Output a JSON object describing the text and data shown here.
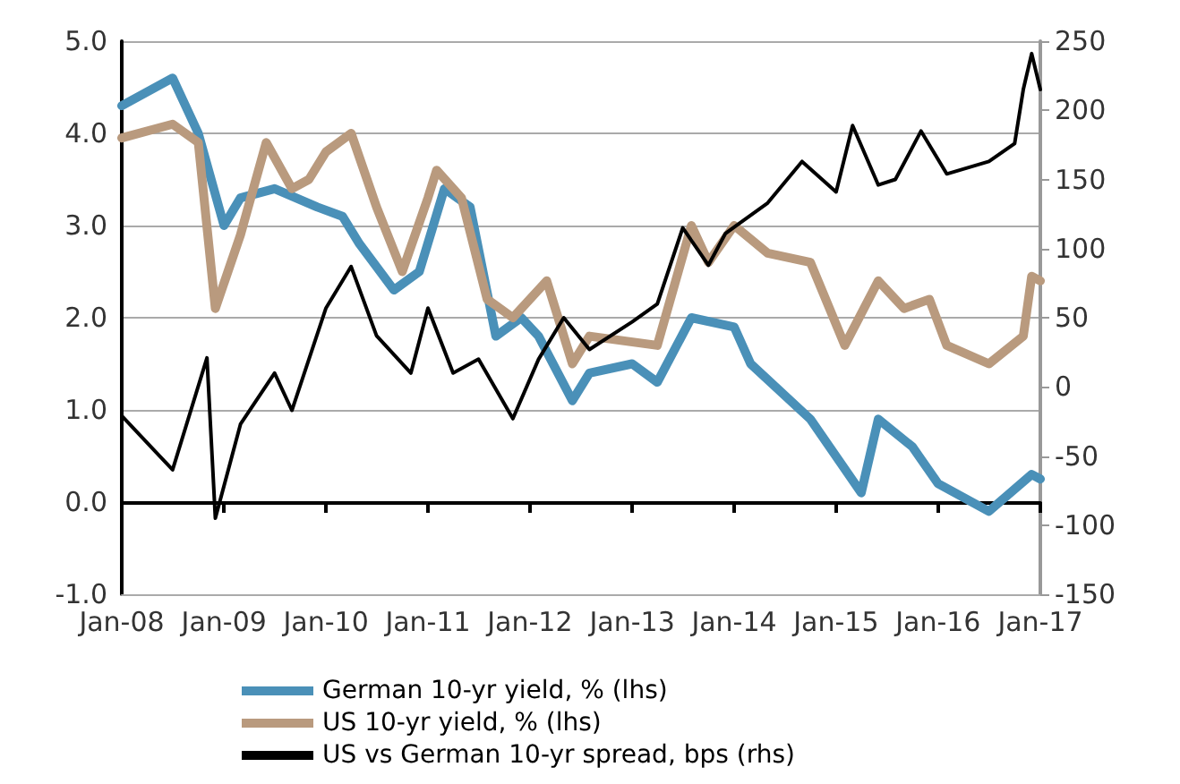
{
  "chart_data": {
    "type": "line",
    "legend": "bottom",
    "grid": "y",
    "marker": "none",
    "line_style": "solid",
    "xlim": [
      "2008-01",
      "2017-01"
    ],
    "xticks": [
      {
        "value": "2008-01",
        "label": "Jan-08"
      },
      {
        "value": "2009-01",
        "label": "Jan-09"
      },
      {
        "value": "2010-01",
        "label": "Jan-10"
      },
      {
        "value": "2011-01",
        "label": "Jan-11"
      },
      {
        "value": "2012-01",
        "label": "Jan-12"
      },
      {
        "value": "2013-01",
        "label": "Jan-13"
      },
      {
        "value": "2014-01",
        "label": "Jan-14"
      },
      {
        "value": "2015-01",
        "label": "Jan-15"
      },
      {
        "value": "2016-01",
        "label": "Jan-16"
      },
      {
        "value": "2017-01",
        "label": "Jan-17"
      }
    ],
    "ylim": [
      -1,
      5
    ],
    "yticks": [
      {
        "value": -1,
        "label": "-1.0"
      },
      {
        "value": 0,
        "label": "0.0"
      },
      {
        "value": 1,
        "label": "1.0"
      },
      {
        "value": 2,
        "label": "2.0"
      },
      {
        "value": 3,
        "label": "3.0"
      },
      {
        "value": 4,
        "label": "4.0"
      },
      {
        "value": 5,
        "label": "5.0"
      }
    ],
    "y2lim": [
      -150,
      250
    ],
    "y2ticks": [
      -150,
      -100,
      -50,
      0,
      50,
      100,
      150,
      200,
      250
    ],
    "series": [
      {
        "name": "German 10-yr yield, % (lhs)",
        "color": "#4a90b8",
        "x": [
          "2008-01",
          "2008-07",
          "2008-10",
          "2009-01",
          "2009-03",
          "2009-07",
          "2009-12",
          "2010-03",
          "2010-05",
          "2010-09",
          "2010-12",
          "2011-03",
          "2011-06",
          "2011-09",
          "2011-12",
          "2012-02",
          "2012-06",
          "2012-08",
          "2013-01",
          "2013-04",
          "2013-08",
          "2014-01",
          "2014-03",
          "2014-10",
          "2015-04",
          "2015-06",
          "2015-10",
          "2016-01",
          "2016-07",
          "2016-12",
          "2017-01"
        ],
        "values": [
          4.3,
          4.6,
          4.0,
          3.0,
          3.3,
          3.4,
          3.2,
          3.1,
          2.8,
          2.3,
          2.5,
          3.4,
          3.2,
          1.8,
          2.0,
          1.8,
          1.1,
          1.4,
          1.5,
          1.3,
          2.0,
          1.9,
          1.5,
          0.9,
          0.1,
          0.9,
          0.6,
          0.2,
          -0.1,
          0.3,
          0.25
        ]
      },
      {
        "name": "US 10-yr yield, % (lhs)",
        "color": "#b99a7e",
        "x": [
          "2008-01",
          "2008-07",
          "2008-10",
          "2008-12",
          "2009-03",
          "2009-06",
          "2009-09",
          "2009-11",
          "2010-01",
          "2010-04",
          "2010-07",
          "2010-10",
          "2011-01",
          "2011-02",
          "2011-05",
          "2011-08",
          "2011-11",
          "2012-03",
          "2012-06",
          "2012-08",
          "2013-04",
          "2013-08",
          "2013-10",
          "2014-01",
          "2014-05",
          "2014-10",
          "2015-02",
          "2015-06",
          "2015-09",
          "2015-12",
          "2016-02",
          "2016-07",
          "2016-11",
          "2016-12",
          "2017-01"
        ],
        "values": [
          3.95,
          4.1,
          3.9,
          2.1,
          2.9,
          3.9,
          3.4,
          3.5,
          3.8,
          4.0,
          3.2,
          2.5,
          3.3,
          3.6,
          3.3,
          2.2,
          2.0,
          2.4,
          1.5,
          1.8,
          1.7,
          3.0,
          2.6,
          3.0,
          2.7,
          2.6,
          1.7,
          2.4,
          2.1,
          2.2,
          1.7,
          1.5,
          1.8,
          2.45,
          2.4
        ]
      },
      {
        "name": "US vs German 10-yr spread, bps (rhs)",
        "color": "#000000",
        "axis": "y2",
        "x": [
          "2008-01",
          "2008-07",
          "2008-11",
          "2008-12",
          "2009-03",
          "2009-07",
          "2009-09",
          "2010-01",
          "2010-04",
          "2010-07",
          "2010-11",
          "2011-01",
          "2011-04",
          "2011-07",
          "2011-11",
          "2012-02",
          "2012-05",
          "2012-08",
          "2013-01",
          "2013-04",
          "2013-07",
          "2013-10",
          "2013-12",
          "2014-05",
          "2014-09",
          "2015-01",
          "2015-03",
          "2015-06",
          "2015-08",
          "2015-11",
          "2016-02",
          "2016-07",
          "2016-10",
          "2016-11",
          "2016-12",
          "2017-01"
        ],
        "values": [
          -21,
          -60,
          21,
          -95,
          -27,
          10,
          -17,
          57,
          87,
          37,
          10,
          57,
          10,
          20,
          -23,
          20,
          50,
          27,
          47,
          60,
          115,
          88,
          111,
          133,
          163,
          141,
          189,
          146,
          150,
          185,
          154,
          163,
          176,
          215,
          241,
          215
        ]
      }
    ]
  }
}
